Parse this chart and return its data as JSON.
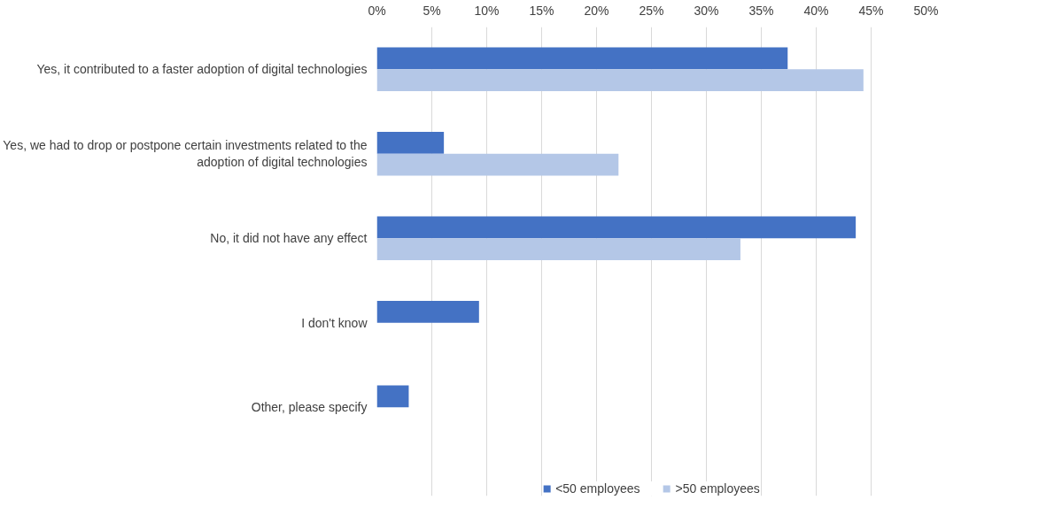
{
  "chart_data": {
    "type": "bar",
    "orientation": "horizontal",
    "categories": [
      "Yes, it contributed to a faster adoption of digital technologies",
      "Yes, we had to drop or postpone certain investments related to the\nadoption of digital technologies",
      "No, it did not have any effect",
      "I don't know",
      "Other, please specify"
    ],
    "series": [
      {
        "name": "<50 employees",
        "color": "#4472c4",
        "values": [
          37.4,
          6.1,
          43.6,
          9.3,
          2.9
        ]
      },
      {
        "name": ">50 employees",
        "color": "#b4c7e7",
        "values": [
          44.3,
          22.0,
          33.1,
          null,
          null
        ]
      }
    ],
    "xlim": [
      0,
      50
    ],
    "xticks": [
      {
        "value": 0,
        "label": "0%"
      },
      {
        "value": 5,
        "label": "5%"
      },
      {
        "value": 10,
        "label": "10%"
      },
      {
        "value": 15,
        "label": "15%"
      },
      {
        "value": 20,
        "label": "20%"
      },
      {
        "value": 25,
        "label": "25%"
      },
      {
        "value": 30,
        "label": "30%"
      },
      {
        "value": 35,
        "label": "35%"
      },
      {
        "value": 40,
        "label": "40%"
      },
      {
        "value": 45,
        "label": "45%"
      },
      {
        "value": 50,
        "label": "50%"
      }
    ],
    "grid": "x",
    "legend": "bottom"
  }
}
